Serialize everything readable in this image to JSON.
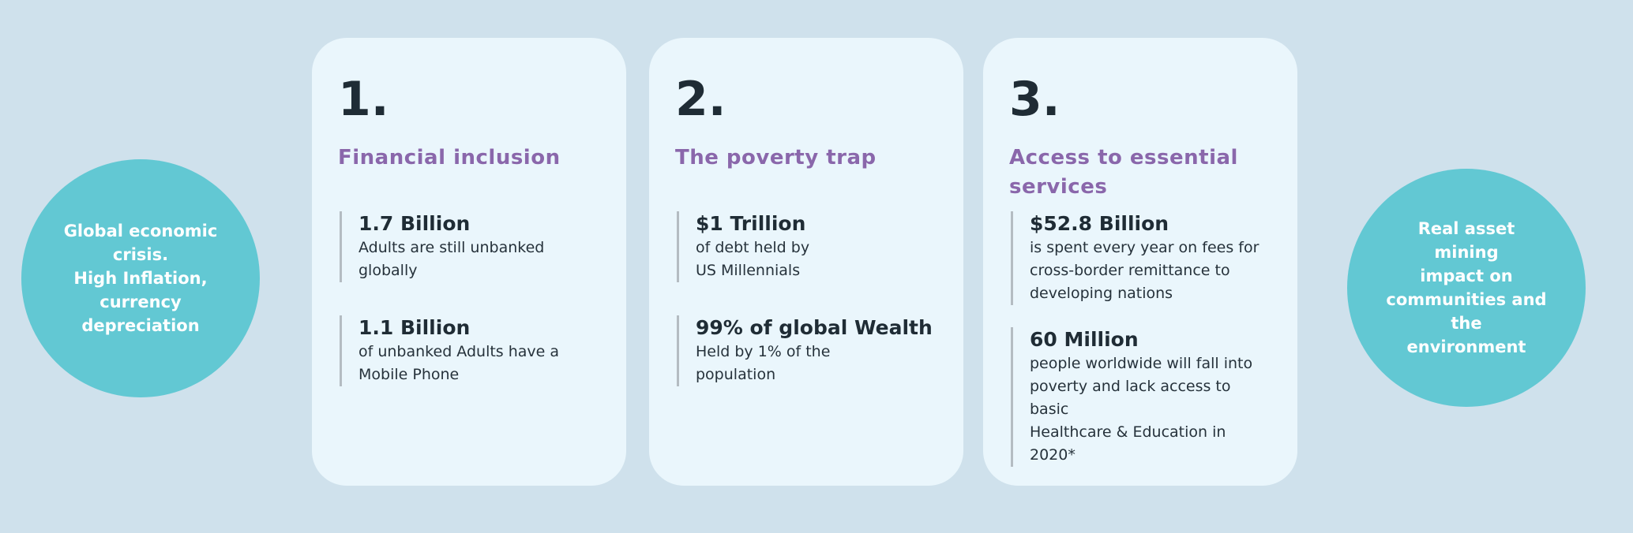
{
  "left_circle": {
    "text": "Global economic\ncrisis.\nHigh Inflation,\ncurrency\ndepreciation"
  },
  "right_circle": {
    "text": "Real asset  mining\nimpact on\ncommunities and the\nenvironment"
  },
  "colors": {
    "background": "#cfe1ec",
    "circle": "#62c8d3",
    "card": "#eaf6fc",
    "title": "#8a67ab",
    "text": "#1f2c35"
  },
  "cards": [
    {
      "number": "1.",
      "title": "Financial inclusion",
      "stats": [
        {
          "value": "1.7 Billion",
          "desc": "Adults are still unbanked\nglobally"
        },
        {
          "value": "1.1 Billion",
          "desc": "of unbanked Adults have a\nMobile Phone"
        }
      ]
    },
    {
      "number": "2.",
      "title": "The poverty trap",
      "stats": [
        {
          "value": "$1 Trillion",
          "desc": "of debt held by\nUS Millennials"
        },
        {
          "value": "99% of global Wealth",
          "desc": "Held by 1% of the\npopulation"
        }
      ]
    },
    {
      "number": "3.",
      "title": "Access to essential services",
      "stats": [
        {
          "value": "$52.8 Billion",
          "desc": "is spent every year on fees for\ncross-border remittance to\ndeveloping nations"
        },
        {
          "value": "60 Million",
          "desc": "people worldwide will fall into\npoverty and lack access to basic\nHealthcare & Education in 2020*"
        }
      ]
    }
  ]
}
